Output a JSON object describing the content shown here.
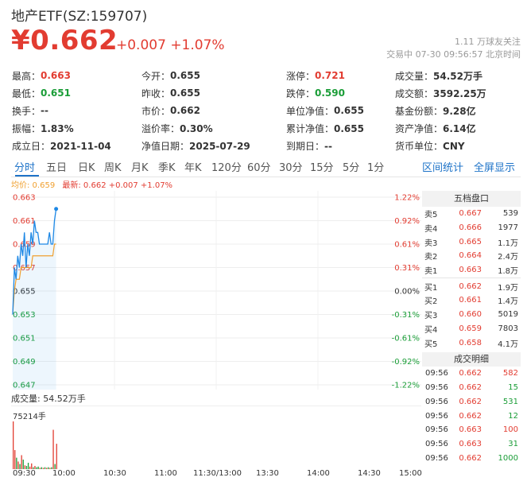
{
  "header": {
    "title": "地产ETF(SZ:159707)",
    "price": "¥0.662",
    "change": "+0.007 +1.07%",
    "followers": "1.11 万球友关注",
    "status_time": "交易中 07-30 09:56:57 北京时间"
  },
  "stats": [
    [
      {
        "k": "最高：",
        "v": "0.663",
        "c": "red"
      },
      {
        "k": "今开：",
        "v": "0.655",
        "c": ""
      },
      {
        "k": "涨停：",
        "v": "0.721",
        "c": "red"
      },
      {
        "k": "成交量：",
        "v": "54.52万手",
        "c": ""
      }
    ],
    [
      {
        "k": "最低：",
        "v": "0.651",
        "c": "green"
      },
      {
        "k": "昨收：",
        "v": "0.655",
        "c": ""
      },
      {
        "k": "跌停：",
        "v": "0.590",
        "c": "green"
      },
      {
        "k": "成交额：",
        "v": "3592.25万",
        "c": ""
      }
    ],
    [
      {
        "k": "换手：",
        "v": "--",
        "c": ""
      },
      {
        "k": "市价：",
        "v": "0.662",
        "c": ""
      },
      {
        "k": "单位净值：",
        "v": "0.655",
        "c": ""
      },
      {
        "k": "基金份额：",
        "v": "9.28亿",
        "c": ""
      }
    ],
    [
      {
        "k": "振幅：",
        "v": "1.83%",
        "c": ""
      },
      {
        "k": "溢价率：",
        "v": "0.30%",
        "c": ""
      },
      {
        "k": "累计净值：",
        "v": "0.655",
        "c": ""
      },
      {
        "k": "资产净值：",
        "v": "6.14亿",
        "c": ""
      }
    ],
    [
      {
        "k": "成立日：",
        "v": "2021-11-04",
        "c": ""
      },
      {
        "k": "净值日期：",
        "v": "2025-07-29",
        "c": ""
      },
      {
        "k": "到期日：",
        "v": "--",
        "c": ""
      },
      {
        "k": "货币单位：",
        "v": "CNY",
        "c": ""
      }
    ]
  ],
  "tabs": [
    "分时",
    "五日",
    "日K",
    "周K",
    "月K",
    "季K",
    "年K",
    "120分",
    "60分",
    "30分",
    "15分",
    "5分",
    "1分"
  ],
  "tabs_right": [
    "区间统计",
    "全屏显示"
  ],
  "legend": {
    "avg": "均价: 0.659",
    "last": "最新: 0.662 +0.007 +1.07%"
  },
  "volume": {
    "label": "成交量: 54.52万手",
    "sub": "75214手"
  },
  "order_book": {
    "title": "五档盘口",
    "rows": [
      {
        "label": "卖5",
        "price": "0.667",
        "vol": "539",
        "c": "red"
      },
      {
        "label": "卖4",
        "price": "0.666",
        "vol": "1977",
        "c": "red"
      },
      {
        "label": "卖3",
        "price": "0.665",
        "vol": "1.1万",
        "c": "red"
      },
      {
        "label": "卖2",
        "price": "0.664",
        "vol": "2.4万",
        "c": "red"
      },
      {
        "label": "卖1",
        "price": "0.663",
        "vol": "1.8万",
        "c": "red"
      },
      {
        "label": "买1",
        "price": "0.662",
        "vol": "1.9万",
        "c": "red"
      },
      {
        "label": "买2",
        "price": "0.661",
        "vol": "1.4万",
        "c": "red"
      },
      {
        "label": "买3",
        "price": "0.660",
        "vol": "5019",
        "c": "red"
      },
      {
        "label": "买4",
        "price": "0.659",
        "vol": "7803",
        "c": "red"
      },
      {
        "label": "买5",
        "price": "0.658",
        "vol": "4.1万",
        "c": "red"
      }
    ]
  },
  "trades": {
    "title": "成交明细",
    "rows": [
      {
        "time": "09:56",
        "price": "0.662",
        "qty": "582",
        "c": "red"
      },
      {
        "time": "09:56",
        "price": "0.662",
        "qty": "15",
        "c": "green"
      },
      {
        "time": "09:56",
        "price": "0.662",
        "qty": "531",
        "c": "green"
      },
      {
        "time": "09:56",
        "price": "0.662",
        "qty": "12",
        "c": "green"
      },
      {
        "time": "09:56",
        "price": "0.663",
        "qty": "100",
        "c": "red"
      },
      {
        "time": "09:56",
        "price": "0.663",
        "qty": "31",
        "c": "green"
      },
      {
        "time": "09:56",
        "price": "0.662",
        "qty": "1000",
        "c": "green"
      }
    ]
  },
  "chart_data": {
    "type": "line",
    "price_ticks": [
      "0.663",
      "0.661",
      "0.659",
      "0.657",
      "0.655",
      "0.653",
      "0.651",
      "0.649",
      "0.647"
    ],
    "pct_ticks": [
      "1.22%",
      "0.92%",
      "0.61%",
      "0.31%",
      "0.00%",
      "-0.31%",
      "-0.61%",
      "-0.92%",
      "-1.22%"
    ],
    "time_ticks": [
      "09:30",
      "10:00",
      "10:30",
      "11:00",
      "11:30/13:00",
      "13:30",
      "14:00",
      "14:30",
      "15:00"
    ],
    "ylim": [
      0.647,
      0.663
    ],
    "price_series": [
      0.653,
      0.657,
      0.656,
      0.658,
      0.657,
      0.659,
      0.658,
      0.66,
      0.657,
      0.659,
      0.658,
      0.66,
      0.659,
      0.661,
      0.66,
      0.66,
      0.659,
      0.659,
      0.659,
      0.659,
      0.659,
      0.659,
      0.66,
      0.659,
      0.659,
      0.661,
      0.662
    ],
    "avg_series": [
      0.653,
      0.655,
      0.656,
      0.656,
      0.656,
      0.657,
      0.657,
      0.657,
      0.657,
      0.657,
      0.657,
      0.657,
      0.658,
      0.658,
      0.658,
      0.658,
      0.658,
      0.658,
      0.658,
      0.658,
      0.658,
      0.658,
      0.658,
      0.658,
      0.658,
      0.659,
      0.659
    ],
    "volume_series": [
      75214,
      30000,
      18000,
      12000,
      8000,
      22000,
      15000,
      6000,
      5000,
      10000,
      4000,
      9000,
      3000,
      5000,
      3000,
      4000,
      2000,
      3000,
      2000,
      3000,
      2000,
      3000,
      2000,
      3000,
      62000,
      8000,
      40000
    ],
    "volume_colors": [
      "red",
      "red",
      "green",
      "red",
      "green",
      "red",
      "green",
      "red",
      "green",
      "green",
      "red",
      "red",
      "green",
      "red",
      "green",
      "green",
      "red",
      "green",
      "red",
      "green",
      "red",
      "green",
      "red",
      "green",
      "red",
      "green",
      "red"
    ],
    "colors": {
      "price": "#1e88e5",
      "avg": "#f0a030",
      "up": "#e23c31",
      "down": "#1a9d37"
    }
  }
}
